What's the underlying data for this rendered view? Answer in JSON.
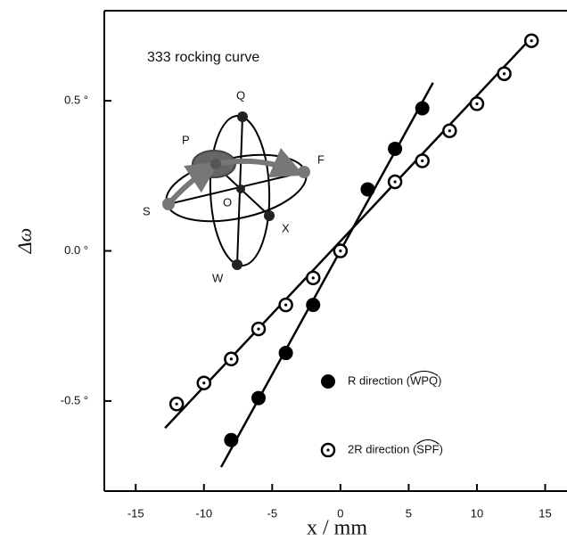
{
  "chart_data": {
    "type": "scatter",
    "x_label": "x  /  mm",
    "y_label": "Δω",
    "xlim": [
      -17.3,
      16.6
    ],
    "ylim": [
      -0.8,
      0.8
    ],
    "xticks": [
      -15,
      -10,
      -5,
      0,
      5,
      10,
      15
    ],
    "yticks": [
      {
        "value": -0.5,
        "label": "-0.5 °"
      },
      {
        "value": 0,
        "label": "0.0 °"
      },
      {
        "value": 0.5,
        "label": "0.5 °"
      }
    ],
    "series": [
      {
        "name": "R direction (WPQ)",
        "marker": "filled",
        "color": "#000000",
        "x": [
          -8,
          -6,
          -4,
          -2,
          2,
          4,
          6
        ],
        "values": [
          -0.63,
          -0.49,
          -0.34,
          -0.18,
          0.205,
          0.34,
          0.475
        ],
        "fit_x": [
          -8.74,
          6.78
        ],
        "fit_y": [
          -0.72,
          0.56
        ]
      },
      {
        "name": "2R direction (SPF)",
        "marker": "open",
        "color": "#000000",
        "x": [
          -12,
          -10,
          -8,
          -6,
          -4,
          -2,
          0,
          4,
          6,
          8,
          10,
          12,
          14
        ],
        "values": [
          -0.51,
          -0.44,
          -0.36,
          -0.26,
          -0.18,
          -0.09,
          0,
          0.23,
          0.3,
          0.4,
          0.49,
          0.59,
          0.7
        ],
        "fit_x": [
          -12.85,
          14.2
        ],
        "fit_y": [
          -0.59,
          0.72
        ]
      }
    ],
    "annotations": {
      "title": "333 rocking curve",
      "Q": "Q",
      "P": "P",
      "F": "F",
      "S": "S",
      "O": "O",
      "X": "X",
      "W": "W"
    }
  }
}
